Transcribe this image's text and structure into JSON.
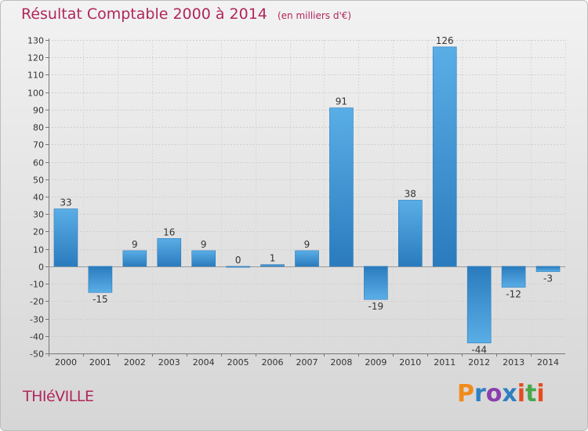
{
  "header": {
    "title": "Résultat Comptable 2000 à 2014",
    "subtitle": "(en milliers d'€)"
  },
  "footer": {
    "city": "THIéVILLE",
    "logo_text": "Proxiti"
  },
  "colors": {
    "title": "#b0265c",
    "bar_light": "#5aaee6",
    "bar_dark": "#2a7bbd",
    "logo_letters": [
      "#f08a1c",
      "#2f7fc1",
      "#8a3fae",
      "#2f7fc1",
      "#e64c1e",
      "#4aa84a",
      "#e64c1e"
    ]
  },
  "chart_data": {
    "type": "bar",
    "categories": [
      "2000",
      "2001",
      "2002",
      "2003",
      "2004",
      "2005",
      "2006",
      "2007",
      "2008",
      "2009",
      "2010",
      "2011",
      "2012",
      "2013",
      "2014"
    ],
    "values": [
      33,
      -15,
      9,
      16,
      9,
      0,
      1,
      9,
      91,
      -19,
      38,
      126,
      -44,
      -12,
      -3
    ],
    "data_labels": [
      "33",
      "-15",
      "9",
      "16",
      "9",
      "0",
      "1",
      "9",
      "91",
      "-19",
      "38",
      "126",
      "-44",
      "-12",
      "-3"
    ],
    "ylim": [
      -50,
      130
    ],
    "yticks": [
      -50,
      -40,
      -30,
      -20,
      -10,
      0,
      10,
      20,
      30,
      40,
      50,
      60,
      70,
      80,
      90,
      100,
      110,
      120,
      130
    ],
    "grid": true,
    "title": "Résultat Comptable 2000 à 2014",
    "xlabel": "",
    "ylabel": ""
  }
}
